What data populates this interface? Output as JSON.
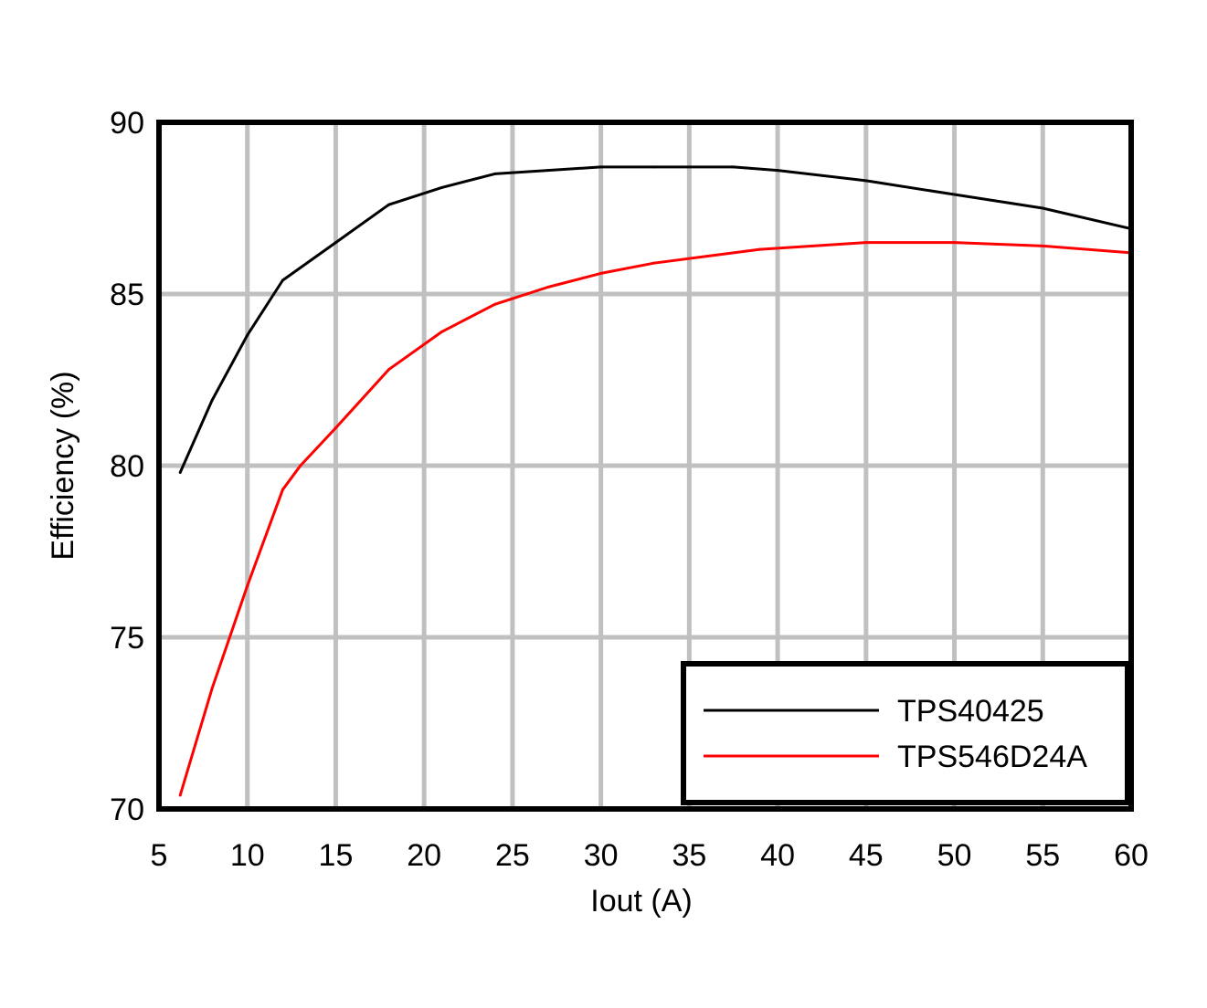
{
  "chart_data": {
    "type": "line",
    "title": "",
    "xlabel": "Iout (A)",
    "ylabel": "Efficiency (%)",
    "xlim": [
      5,
      60
    ],
    "ylim": [
      70,
      90
    ],
    "x_ticks": [
      5,
      10,
      15,
      20,
      25,
      30,
      35,
      40,
      45,
      50,
      55,
      60
    ],
    "y_ticks": [
      70,
      75,
      80,
      85,
      90
    ],
    "x_tick_labels": [
      "5",
      "10",
      "15",
      "20",
      "25",
      "30",
      "35",
      "40",
      "45",
      "50",
      "55",
      "60"
    ],
    "y_tick_labels": [
      "70",
      "75",
      "80",
      "85",
      "90"
    ],
    "grid": true,
    "legend_position": "bottom-right",
    "series": [
      {
        "name": "TPS40425",
        "color": "#000000",
        "x": [
          6.2,
          8,
          10,
          12,
          15,
          18,
          21,
          24,
          27,
          30,
          33,
          37.5,
          40,
          45,
          50,
          55,
          60
        ],
        "y": [
          79.8,
          81.9,
          83.8,
          85.4,
          86.5,
          87.6,
          88.1,
          88.5,
          88.6,
          88.7,
          88.7,
          88.7,
          88.6,
          88.3,
          87.9,
          87.5,
          86.9
        ]
      },
      {
        "name": "TPS546D24A",
        "color": "#ff0000",
        "x": [
          6.2,
          8,
          10,
          12,
          13,
          15,
          18,
          21,
          24,
          27,
          30,
          33,
          36,
          39,
          42,
          45,
          50,
          55,
          60
        ],
        "y": [
          70.4,
          73.5,
          76.5,
          79.3,
          80.0,
          81.1,
          82.8,
          83.9,
          84.7,
          85.2,
          85.6,
          85.9,
          86.1,
          86.3,
          86.4,
          86.5,
          86.5,
          86.4,
          86.2
        ]
      }
    ]
  }
}
